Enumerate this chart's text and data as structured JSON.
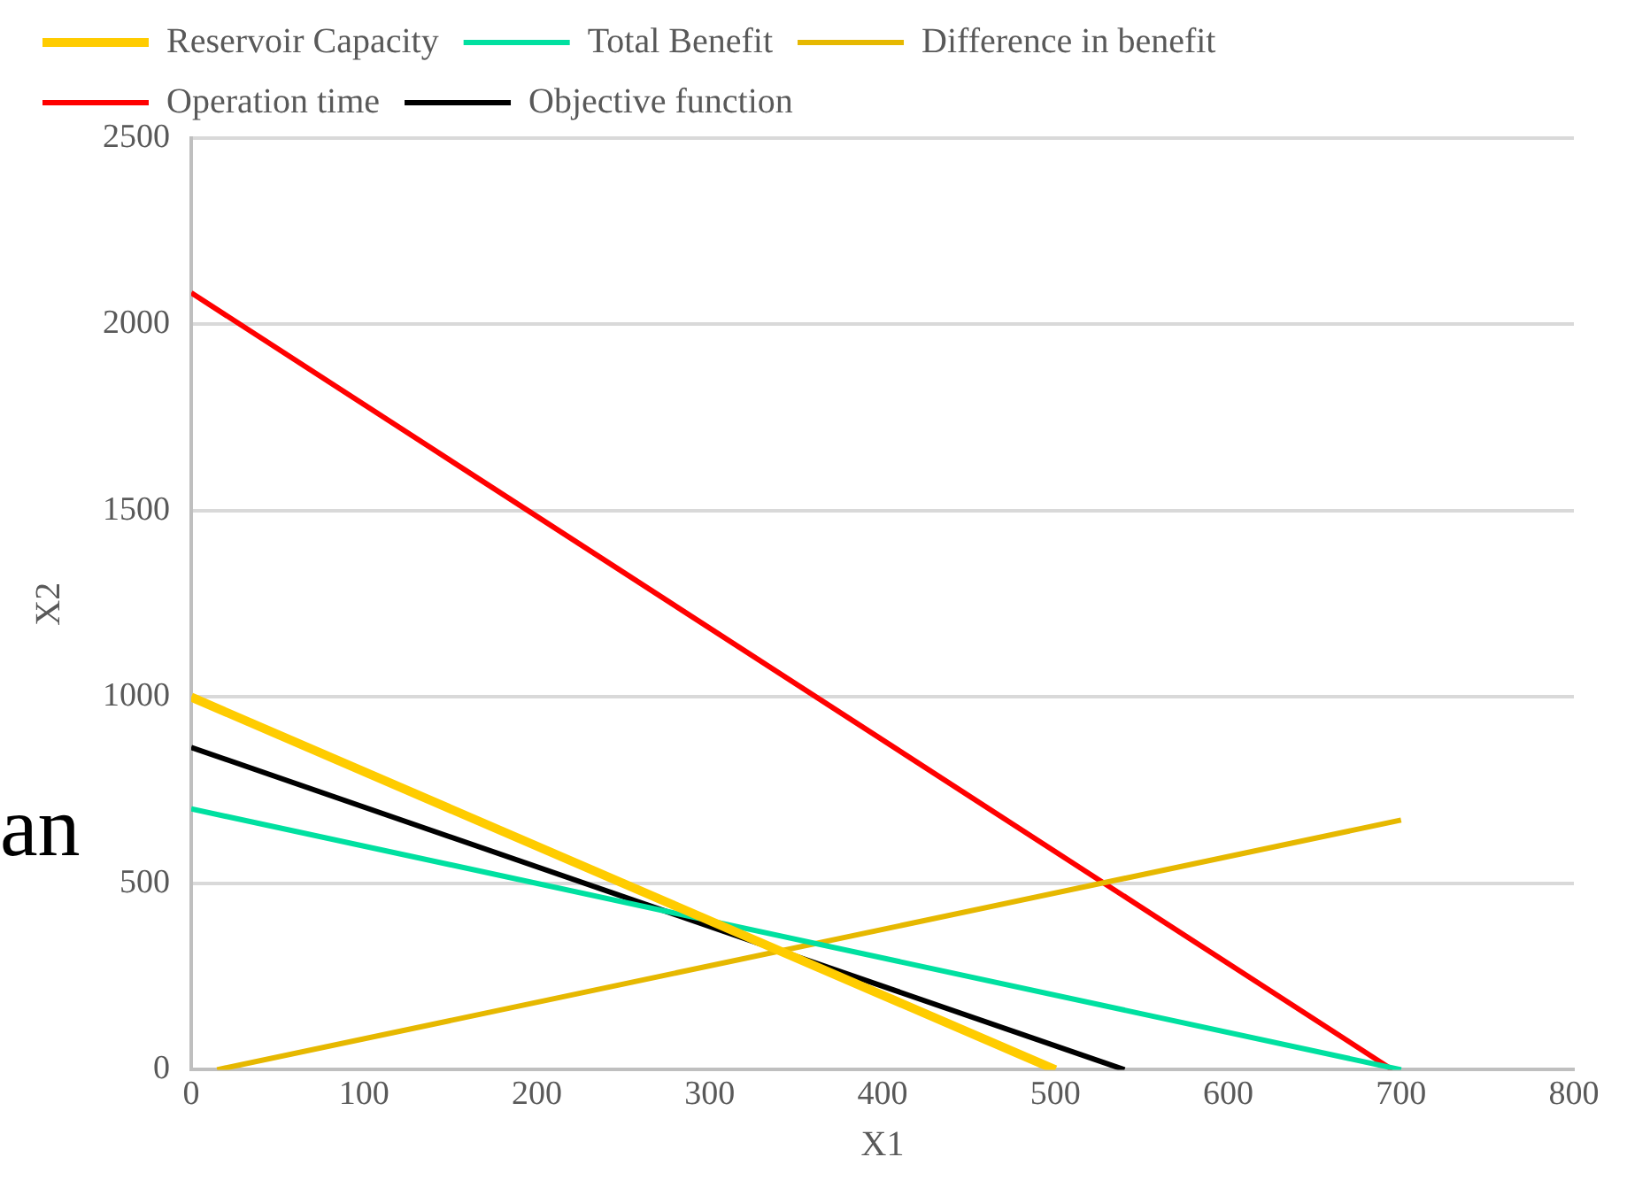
{
  "chart_data": {
    "type": "line",
    "xlabel": "X1",
    "ylabel": "X2",
    "xlim": [
      0,
      800
    ],
    "xticks": [
      0,
      100,
      200,
      300,
      400,
      500,
      600,
      700,
      800
    ],
    "ylim": [
      0,
      2500
    ],
    "yticks": [
      0,
      500,
      1000,
      1500,
      2000,
      2500
    ],
    "grid": "y",
    "legend": "top",
    "marker": "none",
    "line_style": "solid",
    "annotations": [
      "an"
    ],
    "series": [
      {
        "name": "Reservoir Capacity",
        "color": "#ffcc00",
        "x": [
          0,
          500
        ],
        "values": [
          1000,
          0
        ]
      },
      {
        "name": "Total Benefit",
        "color": "#00e0a0",
        "x": [
          0,
          700
        ],
        "values": [
          700,
          0
        ]
      },
      {
        "name": "Difference in benefit",
        "color": "#e6b800",
        "x": [
          15,
          700
        ],
        "values": [
          0,
          670
        ]
      },
      {
        "name": "Operation time",
        "color": "#ff0000",
        "x": [
          0,
          695
        ],
        "values": [
          2085,
          0
        ]
      },
      {
        "name": "Objective function",
        "color": "#000000",
        "x": [
          0,
          540
        ],
        "values": [
          865,
          0
        ]
      }
    ]
  }
}
